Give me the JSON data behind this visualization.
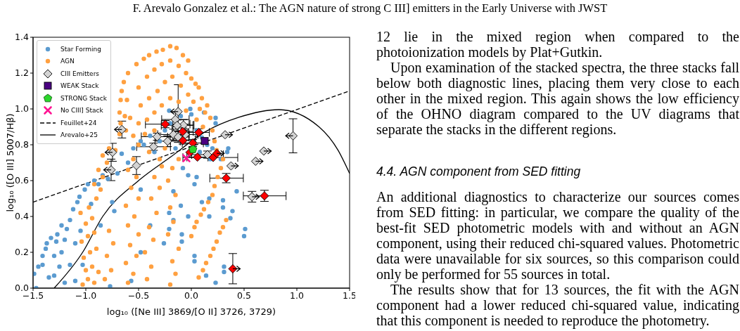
{
  "chart_data": {
    "type": "scatter",
    "title": "F. Arevalo Gonzalez et al.: The AGN nature of strong C III] emitters in the Early Universe with JWST",
    "xlabel": "log₁₀ ([Ne III] 3869/[O II] 3726, 3729)",
    "ylabel": "log₁₀ ([O III] 5007/Hβ)",
    "xlim": [
      -1.5,
      1.5
    ],
    "ylim": [
      0,
      1.4
    ],
    "xticks": [
      {
        "value": -1.5,
        "label": "−1.5"
      },
      {
        "value": -1,
        "label": "−1.0"
      },
      {
        "value": -0.5,
        "label": "−0.5"
      },
      {
        "value": 0,
        "label": "0.0"
      },
      0.5,
      {
        "value": 1,
        "label": "1.0"
      },
      1.5
    ],
    "yticks": [
      {
        "value": 0,
        "label": "0.0"
      },
      0.2,
      0.4,
      0.6,
      0.8,
      {
        "value": 1,
        "label": "1.0"
      },
      1.2,
      1.4
    ],
    "legend": "top left",
    "series": [
      {
        "name": "Star Forming",
        "marker": "circle",
        "color": "#5b9bd0",
        "x": [
          -1.49,
          -1.47,
          -1.45,
          -1.41,
          -1.41,
          -1.38,
          -1.37,
          -1.35,
          -1.33,
          -1.3,
          -1.3,
          -1.28,
          -1.27,
          -1.25,
          -1.23,
          -1.23,
          -1.2,
          -1.2,
          -1.18,
          -1.15,
          -1.15,
          -1.12,
          -1.1,
          -1.1,
          -1.08,
          -1.06,
          -1.05,
          -1.03,
          -1.01,
          -0.98,
          -0.95,
          -0.92,
          -0.88,
          -0.86,
          -0.84,
          -0.79,
          -0.77,
          -0.75,
          -0.73,
          -0.7,
          -0.66,
          -0.6,
          -0.57,
          -0.48,
          -0.48,
          -0.48,
          -0.39,
          -0.39,
          -0.26,
          -0.21,
          -0.21,
          -0.21,
          -0.17,
          -0.17,
          -0.1,
          -0.09,
          -0.09,
          -0.08,
          -0.03,
          -0.03,
          0.03,
          0.03,
          0.03,
          0.05,
          0.1,
          0.14,
          0.17,
          0.17,
          0.23,
          0.3,
          0.3,
          0.31,
          0.31,
          0.37,
          0.39,
          0.43,
          0.5,
          0.51,
          -0.55,
          -0.45,
          -0.35,
          -0.3,
          -0.25,
          -0.2,
          -0.1,
          -0.01,
          0.0,
          0.05,
          0.1,
          0.12,
          0.15,
          0.2,
          0.23,
          0.23,
          0.28,
          0.34,
          0.35,
          -0.15,
          0.08,
          0.18
        ],
        "values": [
          0.08,
          0.0,
          0.12,
          0.18,
          0.13,
          0.22,
          0.25,
          0.06,
          0.28,
          0.07,
          0.18,
          0.26,
          0.3,
          0.12,
          0.35,
          0.2,
          0.27,
          0.03,
          0.33,
          0.38,
          0.13,
          0.44,
          0.04,
          0.25,
          0.48,
          0.51,
          0.32,
          0.13,
          0.55,
          0.58,
          0.47,
          0.6,
          0.58,
          0.35,
          0.63,
          0.61,
          0.01,
          0.48,
          0.43,
          0.64,
          0.75,
          0.7,
          0.04,
          0.2,
          0.55,
          0.82,
          0.35,
          0.85,
          0.25,
          0.42,
          0.33,
          0.99,
          0.54,
          0.38,
          0.46,
          0.3,
          0.26,
          0.67,
          0.63,
          0.4,
          0.58,
          0.18,
          0.15,
          0.62,
          0.48,
          0.07,
          0.5,
          0.4,
          0.03,
          0.49,
          0.45,
          0.12,
          0.09,
          0.39,
          0.43,
          0.54,
          0.29,
          0.33,
          0.78,
          0.8,
          0.76,
          0.82,
          0.88,
          0.92,
          0.96,
          1.0,
          0.97,
          0.88,
          0.84,
          0.98,
          0.8,
          0.78,
          0.95,
          0.92,
          0.72,
          0.76,
          0.78,
          0.78,
          0.76,
          0.72
        ]
      },
      {
        "name": "AGN",
        "marker": "circle",
        "color": "#ffa040",
        "x": [
          -1.03,
          -0.98,
          -0.92,
          -1.0,
          -0.94,
          -0.88,
          -1.02,
          -0.96,
          -0.9,
          -1.04,
          -0.98,
          -0.92,
          -1.0,
          -0.94,
          -1.05,
          -0.97,
          -0.82,
          -0.76,
          -0.8,
          -0.74,
          -0.78,
          -0.9,
          -0.86,
          -0.92,
          -0.84,
          -0.88,
          -0.8,
          -0.84,
          -0.78,
          -0.72,
          -0.6,
          -0.55,
          -0.62,
          -0.52,
          -0.58,
          -0.5,
          -0.6,
          -0.54,
          -0.62,
          -0.5,
          -0.57,
          -0.52,
          -0.6,
          -0.55,
          -0.42,
          -0.38,
          -0.44,
          -0.36,
          -0.4,
          -0.33,
          -0.38,
          -0.3,
          -0.35,
          -0.28,
          -0.2,
          -0.15,
          -0.18,
          -0.12,
          -0.22,
          -0.17,
          -0.2,
          -0.15,
          -0.22,
          -0.18,
          -0.12,
          0.0,
          0.03,
          0.05,
          0.09,
          0.12,
          0.16,
          0.2,
          0.22,
          0.25,
          0.28,
          0.3,
          0.07,
          0.11,
          0.14,
          0.18,
          0.21,
          0.24,
          0.27,
          0.3,
          0.33,
          -0.68,
          -0.67,
          -0.68,
          -0.67,
          -0.66,
          -0.64,
          -0.6,
          -0.63,
          -0.62,
          -0.61,
          -0.58,
          -0.52,
          -0.45,
          -0.4,
          -0.33,
          -0.27,
          -0.2,
          -0.14,
          -0.08,
          -0.03,
          -0.5,
          -0.42,
          -0.35,
          -0.28,
          -0.2,
          -0.12,
          -0.05,
          0.0,
          0.04,
          0.07,
          -0.48,
          -0.4,
          -0.32,
          -0.25,
          -0.18,
          -0.1,
          -0.03,
          0.02,
          0.08,
          -0.5,
          -0.42,
          -0.35,
          -0.28,
          -0.2,
          -0.12,
          -0.05,
          0.05,
          0.11,
          0.15,
          0.18,
          0.2,
          0.22,
          0.24,
          0.1,
          0.13,
          -0.55,
          -0.5,
          -0.44,
          -0.4,
          -0.3,
          -0.25,
          -0.35
        ],
        "values": [
          0.02,
          0.05,
          0.03,
          0.1,
          0.12,
          0.09,
          0.17,
          0.2,
          0.22,
          0.26,
          0.29,
          0.31,
          0.36,
          0.39,
          0.42,
          0.45,
          0.05,
          0.1,
          0.18,
          0.25,
          0.32,
          0.5,
          0.55,
          0.58,
          0.62,
          0.66,
          0.7,
          0.74,
          0.78,
          0.77,
          0.03,
          0.08,
          0.14,
          0.18,
          0.24,
          0.3,
          0.35,
          0.4,
          0.46,
          0.5,
          0.56,
          0.62,
          0.66,
          0.72,
          0.05,
          0.12,
          0.2,
          0.27,
          0.34,
          0.42,
          0.5,
          0.56,
          0.62,
          0.68,
          0.02,
          0.08,
          0.15,
          0.22,
          0.3,
          0.37,
          0.45,
          0.52,
          0.6,
          0.67,
          0.72,
          0.29,
          0.34,
          0.37,
          0.41,
          0.44,
          0.48,
          0.52,
          0.57,
          0.62,
          0.67,
          0.72,
          0.06,
          0.1,
          0.14,
          0.18,
          0.22,
          0.26,
          0.31,
          0.34,
          0.38,
          0.86,
          0.92,
          0.98,
          1.05,
          1.1,
          1.15,
          1.2,
          0.96,
          0.88,
          1.05,
          0.95,
          1.25,
          1.28,
          1.3,
          1.32,
          1.33,
          1.35,
          1.34,
          1.3,
          1.27,
          1.12,
          1.18,
          1.22,
          1.25,
          1.27,
          1.24,
          1.2,
          1.17,
          1.14,
          1.12,
          1.02,
          1.06,
          1.1,
          1.15,
          1.18,
          1.13,
          1.08,
          1.04,
          1.0,
          0.92,
          0.94,
          0.98,
          1.02,
          1.06,
          1.04,
          0.99,
          0.94,
          0.9,
          1.02,
          0.95,
          0.88,
          0.82,
          0.77,
          1.06,
          0.98,
          0.85,
          0.8,
          0.86,
          0.76,
          0.72,
          0.78,
          0.88
        ]
      },
      {
        "name": "CIII Emitters",
        "marker": "diamond",
        "color": "#d3d3d3",
        "x": [
          -0.658,
          -0.747,
          -0.76,
          -0.52,
          -0.358,
          -0.324,
          -0.225,
          -0.169,
          -0.125,
          -0.058,
          -0.151,
          -0.075,
          -0.135,
          -0.125,
          0.153,
          0.32,
          0.964,
          0.687,
          0.609,
          0.376,
          0.575
        ],
        "values": [
          0.885,
          0.758,
          0.66,
          0.684,
          0.789,
          0.845,
          0.82,
          0.857,
          0.843,
          0.857,
          0.941,
          0.91,
          0.908,
          0.985,
          0.745,
          0.856,
          0.85,
          0.765,
          0.708,
          0.682,
          0.51
        ],
        "errors": [
          0.047,
          0.05,
          0.06,
          0.05,
          0.02,
          0.02,
          0.03,
          0.03,
          0.03,
          0.03,
          0.04,
          0.03,
          0.03,
          0.15,
          0.02,
          null,
          0.095,
          null,
          null,
          null,
          0.03
        ],
        "xerrors": [
          [
            -0.728,
            -0.658
          ],
          [
            -0.817,
            -0.747
          ],
          [
            -0.83,
            -0.76
          ],
          null,
          0.16,
          0.15,
          0.12,
          0.15,
          0.1,
          0.12,
          0.13,
          0.1,
          0.15,
          [
            -0.195,
            -0.125
          ],
          0.15,
          [
            0.32,
            0.39
          ],
          [
            0.894,
            0.964
          ],
          [
            0.687,
            0.757
          ],
          [
            0.609,
            0.679
          ],
          [
            0.376,
            0.446
          ],
          [
            0.575,
            0.645
          ]
        ]
      },
      {
        "marker": "diamond",
        "color": "#ff0000",
        "x": [
          -0.247,
          -0.082,
          0.071,
          -0.08,
          0.014,
          -0.013,
          0.058,
          0.207,
          0.242,
          0.331,
          0.693,
          0.393
        ],
        "values": [
          0.915,
          0.874,
          0.869,
          0.824,
          0.81,
          0.758,
          0.731,
          0.729,
          0.752,
          0.614,
          0.515,
          0.108
        ],
        "errors": [
          0.02,
          0.02,
          0.02,
          0.02,
          0.02,
          null,
          null,
          null,
          null,
          0.026,
          0.031,
          [
            0.024,
            0.193
          ]
        ],
        "xerrors": [
          [
            -0.435,
            -0.013
          ],
          0.1,
          0.1,
          0.12,
          0.1,
          null,
          0.1,
          [
            -0.08,
            0.44
          ],
          [
            0.242,
            0.312
          ],
          [
            0.175,
            0.493
          ],
          [
            0.493,
            0.898
          ],
          [
            0.393,
            0.463
          ]
        ]
      },
      {
        "name": "WEAK Stack",
        "marker": "square",
        "color": "#4b0082",
        "x": [
          0.127
        ],
        "values": [
          0.821
        ]
      },
      {
        "name": "STRONG Stack",
        "color": "#2bd62b",
        "x": [
          0.015
        ],
        "values": [
          0.774
        ]
      },
      {
        "name": "No CIII] Stack",
        "marker": "cross",
        "color": "#ff1493",
        "x": [
          -0.047
        ],
        "values": [
          0.725
        ]
      },
      {
        "name": "Feuillet+24",
        "type": "line",
        "marker": "none",
        "line_style": "dashed",
        "color": "#000000",
        "x": [
          -1.5,
          1.5
        ],
        "values": [
          0.48,
          1.1
        ]
      },
      {
        "name": "Arevalo+25",
        "type": "line",
        "marker": "none",
        "line_style": "solid",
        "color": "#000000",
        "x": [
          -1.3,
          -1.03,
          -0.84,
          -0.5,
          -0.2,
          0.14,
          0.45,
          0.83,
          1.21,
          1.39,
          1.5
        ],
        "values": [
          0,
          0.2,
          0.4,
          0.6,
          0.73,
          0.875,
          0.953,
          0.996,
          0.9,
          0.77,
          0.64
        ]
      }
    ],
    "annotations": [
      "12 lie in the mixed region when compared to the photoionization models by Plat+Gutkin.",
      "Upon examination of the stacked spectra, the three stacks fall below both diagnostic lines, placing them very close to each other in the mixed region. This again shows the low efficiency of the OHNO diagram compared to the UV diagrams that separate the stacks in the different regions.",
      "4.4. AGN component from SED fitting",
      "An additional diagnostics to characterize our sources comes from SED fitting: in particular, we compare the quality of the best-fit SED photometric models with and without an AGN component, using their reduced chi-squared values. Photometric data were unavailable for six sources, so this comparison could only be performed for 55 sources in total.",
      "The results show that for 13 sources, the fit with the AGN component had a lower reduced chi-squared value, indicating that this component is needed to reproduce the photometry."
    ]
  }
}
